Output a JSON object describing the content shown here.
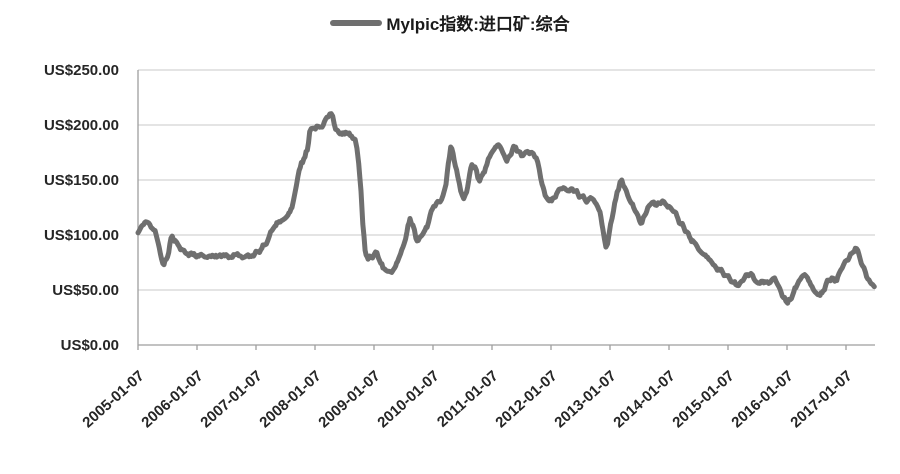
{
  "legend": {
    "label": "MyIpic指数:进口矿:综合"
  },
  "colors": {
    "line": "#6f6f6f",
    "grid": "#c8c8c8",
    "axis": "#9e9e9e",
    "text": "#262626",
    "background": "#ffffff"
  },
  "chart_data": {
    "type": "line",
    "title": "",
    "legend_position": "top",
    "grid": true,
    "ylabel": "",
    "xlabel": "",
    "y_axis": {
      "min": 0,
      "max": 250,
      "tick_interval": 50,
      "tick_values": [
        0,
        50,
        100,
        150,
        200,
        250
      ],
      "tick_labels": [
        "US$0.00",
        "US$50.00",
        "US$100.00",
        "US$150.00",
        "US$200.00",
        "US$250.00"
      ]
    },
    "x_axis": {
      "tick_labels": [
        "2005-01-07",
        "2006-01-07",
        "2007-01-07",
        "2008-01-07",
        "2009-01-07",
        "2010-01-07",
        "2011-01-07",
        "2012-01-07",
        "2013-01-07",
        "2014-01-07",
        "2015-01-07",
        "2016-01-07",
        "2017-01-07"
      ]
    },
    "series": [
      {
        "name": "MyIpic指数:进口矿:综合",
        "color": "#6f6f6f",
        "points": [
          [
            2005.02,
            102
          ],
          [
            2005.06,
            106
          ],
          [
            2005.1,
            109
          ],
          [
            2005.15,
            112
          ],
          [
            2005.2,
            111
          ],
          [
            2005.26,
            106
          ],
          [
            2005.31,
            104
          ],
          [
            2005.36,
            93
          ],
          [
            2005.42,
            78
          ],
          [
            2005.46,
            73
          ],
          [
            2005.52,
            80
          ],
          [
            2005.56,
            92
          ],
          [
            2005.6,
            99
          ],
          [
            2005.65,
            95
          ],
          [
            2005.7,
            91
          ],
          [
            2005.76,
            87
          ],
          [
            2005.82,
            84
          ],
          [
            2005.9,
            83
          ],
          [
            2005.99,
            81
          ],
          [
            2006.07,
            82
          ],
          [
            2006.15,
            80
          ],
          [
            2006.24,
            81
          ],
          [
            2006.32,
            80
          ],
          [
            2006.41,
            82
          ],
          [
            2006.49,
            81
          ],
          [
            2006.58,
            80
          ],
          [
            2006.66,
            82
          ],
          [
            2006.75,
            81
          ],
          [
            2006.83,
            80
          ],
          [
            2006.92,
            81
          ],
          [
            2007.0,
            83
          ],
          [
            2007.06,
            85
          ],
          [
            2007.12,
            88
          ],
          [
            2007.17,
            91
          ],
          [
            2007.22,
            95
          ],
          [
            2007.29,
            104
          ],
          [
            2007.34,
            108
          ],
          [
            2007.39,
            111
          ],
          [
            2007.45,
            113
          ],
          [
            2007.51,
            115
          ],
          [
            2007.56,
            118
          ],
          [
            2007.63,
            125
          ],
          [
            2007.68,
            138
          ],
          [
            2007.73,
            153
          ],
          [
            2007.79,
            166
          ],
          [
            2007.85,
            171
          ],
          [
            2007.89,
            177
          ],
          [
            2007.93,
            194
          ],
          [
            2007.98,
            197
          ],
          [
            2008.05,
            199
          ],
          [
            2008.1,
            198
          ],
          [
            2008.16,
            200
          ],
          [
            2008.22,
            207
          ],
          [
            2008.27,
            210
          ],
          [
            2008.32,
            208
          ],
          [
            2008.37,
            196
          ],
          [
            2008.44,
            192
          ],
          [
            2008.5,
            193
          ],
          [
            2008.58,
            192
          ],
          [
            2008.64,
            190
          ],
          [
            2008.7,
            187
          ],
          [
            2008.73,
            179
          ],
          [
            2008.76,
            165
          ],
          [
            2008.8,
            140
          ],
          [
            2008.83,
            110
          ],
          [
            2008.87,
            86
          ],
          [
            2008.92,
            78
          ],
          [
            2008.97,
            80
          ],
          [
            2009.02,
            82
          ],
          [
            2009.07,
            84
          ],
          [
            2009.12,
            76
          ],
          [
            2009.17,
            70
          ],
          [
            2009.22,
            68
          ],
          [
            2009.27,
            67
          ],
          [
            2009.32,
            66
          ],
          [
            2009.37,
            70
          ],
          [
            2009.42,
            76
          ],
          [
            2009.47,
            83
          ],
          [
            2009.53,
            92
          ],
          [
            2009.58,
            103
          ],
          [
            2009.63,
            115
          ],
          [
            2009.68,
            109
          ],
          [
            2009.73,
            97
          ],
          [
            2009.77,
            95
          ],
          [
            2009.82,
            99
          ],
          [
            2009.87,
            103
          ],
          [
            2009.92,
            107
          ],
          [
            2009.97,
            118
          ],
          [
            2010.03,
            126
          ],
          [
            2010.08,
            129
          ],
          [
            2010.14,
            130
          ],
          [
            2010.19,
            136
          ],
          [
            2010.24,
            146
          ],
          [
            2010.28,
            165
          ],
          [
            2010.32,
            180
          ],
          [
            2010.36,
            174
          ],
          [
            2010.44,
            153
          ],
          [
            2010.49,
            140
          ],
          [
            2010.54,
            133
          ],
          [
            2010.59,
            139
          ],
          [
            2010.64,
            155
          ],
          [
            2010.68,
            164
          ],
          [
            2010.73,
            162
          ],
          [
            2010.78,
            152
          ],
          [
            2010.81,
            149
          ],
          [
            2010.86,
            155
          ],
          [
            2010.91,
            161
          ],
          [
            2010.98,
            171
          ],
          [
            2011.03,
            176
          ],
          [
            2011.08,
            180
          ],
          [
            2011.13,
            182
          ],
          [
            2011.18,
            178
          ],
          [
            2011.23,
            172
          ],
          [
            2011.27,
            167
          ],
          [
            2011.32,
            172
          ],
          [
            2011.37,
            178
          ],
          [
            2011.42,
            180
          ],
          [
            2011.47,
            176
          ],
          [
            2011.52,
            172
          ],
          [
            2011.57,
            174
          ],
          [
            2011.62,
            176
          ],
          [
            2011.67,
            175
          ],
          [
            2011.72,
            174
          ],
          [
            2011.77,
            170
          ],
          [
            2011.82,
            160
          ],
          [
            2011.87,
            146
          ],
          [
            2011.92,
            136
          ],
          [
            2011.97,
            132
          ],
          [
            2012.03,
            131
          ],
          [
            2012.08,
            134
          ],
          [
            2012.13,
            139
          ],
          [
            2012.18,
            142
          ],
          [
            2012.23,
            143
          ],
          [
            2012.28,
            141
          ],
          [
            2012.33,
            140
          ],
          [
            2012.38,
            142
          ],
          [
            2012.43,
            140
          ],
          [
            2012.48,
            137
          ],
          [
            2012.54,
            135
          ],
          [
            2012.59,
            133
          ],
          [
            2012.64,
            131
          ],
          [
            2012.69,
            134
          ],
          [
            2012.74,
            132
          ],
          [
            2012.79,
            128
          ],
          [
            2012.85,
            121
          ],
          [
            2012.9,
            105
          ],
          [
            2012.95,
            89
          ],
          [
            2012.98,
            92
          ],
          [
            2013.03,
            110
          ],
          [
            2013.08,
            122
          ],
          [
            2013.14,
            139
          ],
          [
            2013.19,
            148
          ],
          [
            2013.22,
            150
          ],
          [
            2013.27,
            143
          ],
          [
            2013.32,
            136
          ],
          [
            2013.37,
            130
          ],
          [
            2013.42,
            125
          ],
          [
            2013.47,
            120
          ],
          [
            2013.52,
            113
          ],
          [
            2013.56,
            111
          ],
          [
            2013.61,
            118
          ],
          [
            2013.66,
            125
          ],
          [
            2013.71,
            128
          ],
          [
            2013.76,
            130
          ],
          [
            2013.81,
            127
          ],
          [
            2013.86,
            129
          ],
          [
            2013.91,
            131
          ],
          [
            2013.96,
            128
          ],
          [
            2014.02,
            126
          ],
          [
            2014.07,
            123
          ],
          [
            2014.12,
            121
          ],
          [
            2014.17,
            115
          ],
          [
            2014.22,
            110
          ],
          [
            2014.27,
            107
          ],
          [
            2014.32,
            103
          ],
          [
            2014.37,
            98
          ],
          [
            2014.42,
            95
          ],
          [
            2014.47,
            92
          ],
          [
            2014.52,
            87
          ],
          [
            2014.57,
            84
          ],
          [
            2014.62,
            82
          ],
          [
            2014.67,
            80
          ],
          [
            2014.72,
            77
          ],
          [
            2014.77,
            73
          ],
          [
            2014.82,
            70
          ],
          [
            2014.88,
            68
          ],
          [
            2014.93,
            66
          ],
          [
            2015.0,
            63
          ],
          [
            2015.05,
            60
          ],
          [
            2015.1,
            57
          ],
          [
            2015.15,
            55
          ],
          [
            2015.2,
            54
          ],
          [
            2015.25,
            58
          ],
          [
            2015.3,
            61
          ],
          [
            2015.35,
            64
          ],
          [
            2015.41,
            65
          ],
          [
            2015.46,
            60
          ],
          [
            2015.51,
            57
          ],
          [
            2015.56,
            56
          ],
          [
            2015.61,
            58
          ],
          [
            2015.66,
            57
          ],
          [
            2015.71,
            56
          ],
          [
            2015.76,
            59
          ],
          [
            2015.81,
            61
          ],
          [
            2015.86,
            55
          ],
          [
            2015.92,
            48
          ],
          [
            2015.96,
            43
          ],
          [
            2016.0,
            40
          ],
          [
            2016.03,
            38
          ],
          [
            2016.07,
            41
          ],
          [
            2016.12,
            46
          ],
          [
            2016.17,
            52
          ],
          [
            2016.22,
            58
          ],
          [
            2016.27,
            62
          ],
          [
            2016.32,
            64
          ],
          [
            2016.37,
            61
          ],
          [
            2016.42,
            55
          ],
          [
            2016.47,
            50
          ],
          [
            2016.52,
            47
          ],
          [
            2016.58,
            45
          ],
          [
            2016.63,
            49
          ],
          [
            2016.68,
            55
          ],
          [
            2016.73,
            59
          ],
          [
            2016.78,
            61
          ],
          [
            2016.83,
            58
          ],
          [
            2016.88,
            62
          ],
          [
            2016.93,
            68
          ],
          [
            2016.98,
            73
          ],
          [
            2017.03,
            77
          ],
          [
            2017.08,
            80
          ],
          [
            2017.13,
            84
          ],
          [
            2017.18,
            88
          ],
          [
            2017.22,
            86
          ],
          [
            2017.26,
            78
          ],
          [
            2017.3,
            72
          ],
          [
            2017.35,
            66
          ],
          [
            2017.39,
            60
          ],
          [
            2017.43,
            57
          ],
          [
            2017.47,
            55
          ],
          [
            2017.5,
            53
          ]
        ]
      }
    ]
  }
}
